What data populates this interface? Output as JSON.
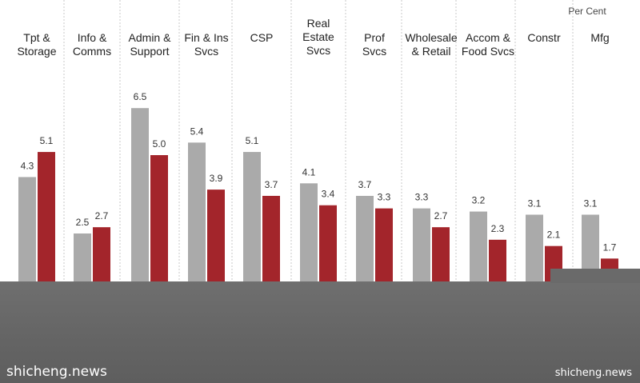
{
  "chart_data": {
    "type": "bar",
    "unit_label": "Per Cent",
    "categories": [
      [
        "Tpt &",
        "Storage"
      ],
      [
        "Info &",
        "Comms"
      ],
      [
        "Admin &",
        "Support"
      ],
      [
        "Fin & Ins",
        "Svcs"
      ],
      [
        "CSP"
      ],
      [
        "Real",
        "Estate",
        "Svcs"
      ],
      [
        "Prof",
        "Svcs"
      ],
      [
        "Wholesale",
        "& Retail"
      ],
      [
        "Accom &",
        "Food Svcs"
      ],
      [
        "Constr"
      ],
      [
        "Mfg"
      ]
    ],
    "series": [
      {
        "color": "#aaaaaa",
        "values": [
          4.3,
          2.5,
          6.5,
          5.4,
          5.1,
          4.1,
          3.7,
          3.3,
          3.2,
          3.1,
          3.1
        ]
      },
      {
        "color": "#a3252b",
        "values": [
          5.1,
          2.7,
          5.0,
          3.9,
          3.7,
          3.4,
          3.3,
          2.7,
          2.3,
          2.1,
          1.7
        ]
      }
    ],
    "value_labels": [
      [
        "4.3",
        "2.5",
        "6.5",
        "5.4",
        "5.1",
        "4.1",
        "3.7",
        "3.3",
        "3.2",
        "3.1",
        "3.1"
      ],
      [
        "5.1",
        "2.7",
        "5.0",
        "3.9",
        "3.7",
        "3.4",
        "3.3",
        "2.7",
        "2.3",
        "2.1",
        "1.7"
      ]
    ],
    "grid": false,
    "legend": "none"
  },
  "watermark": {
    "left": "shicheng.news",
    "right": "shicheng.news"
  }
}
